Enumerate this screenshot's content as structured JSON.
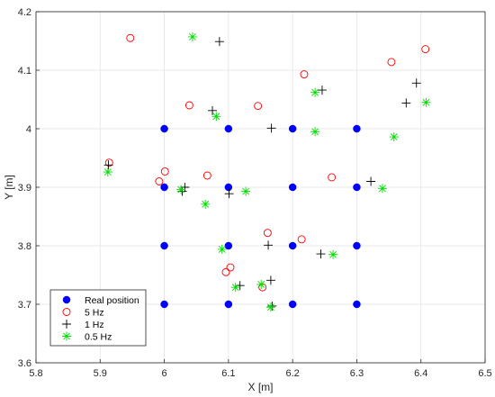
{
  "chart_data": {
    "type": "scatter",
    "title": "",
    "xlabel": "X [m]",
    "ylabel": "Y [m]",
    "xlim": [
      5.8,
      6.5
    ],
    "ylim": [
      3.6,
      4.2
    ],
    "xticks": [
      "5.8",
      "5.9",
      "6",
      "6.1",
      "6.2",
      "6.3",
      "6.4",
      "6.5"
    ],
    "yticks": [
      "3.6",
      "3.7",
      "3.8",
      "3.9",
      "4",
      "4.1",
      "4.2"
    ],
    "xtick_values": [
      5.8,
      5.9,
      6.0,
      6.1,
      6.2,
      6.3,
      6.4,
      6.5
    ],
    "ytick_values": [
      3.6,
      3.7,
      3.8,
      3.9,
      4.0,
      4.1,
      4.2
    ],
    "grid": true,
    "legend_position": "bottom-left",
    "series": [
      {
        "name": "Real position",
        "marker": "filled-circle",
        "color": "#0000ff",
        "points": [
          [
            6.0,
            4.0
          ],
          [
            6.1,
            4.0
          ],
          [
            6.2,
            4.0
          ],
          [
            6.3,
            4.0
          ],
          [
            6.0,
            3.9
          ],
          [
            6.1,
            3.9
          ],
          [
            6.2,
            3.9
          ],
          [
            6.3,
            3.9
          ],
          [
            6.0,
            3.8
          ],
          [
            6.1,
            3.8
          ],
          [
            6.2,
            3.8
          ],
          [
            6.3,
            3.8
          ],
          [
            6.0,
            3.7
          ],
          [
            6.1,
            3.7
          ],
          [
            6.2,
            3.7
          ],
          [
            6.3,
            3.7
          ]
        ]
      },
      {
        "name": "5 Hz",
        "marker": "open-circle",
        "color": "#ff0000",
        "points": [
          [
            5.947,
            4.155
          ],
          [
            6.407,
            4.136
          ],
          [
            6.354,
            4.114
          ],
          [
            6.218,
            4.093
          ],
          [
            6.039,
            4.04
          ],
          [
            6.146,
            4.039
          ],
          [
            5.914,
            3.942
          ],
          [
            6.001,
            3.927
          ],
          [
            5.992,
            3.91
          ],
          [
            6.067,
            3.92
          ],
          [
            6.261,
            3.917
          ],
          [
            6.161,
            3.822
          ],
          [
            6.214,
            3.811
          ],
          [
            6.103,
            3.763
          ],
          [
            6.096,
            3.755
          ],
          [
            6.153,
            3.729
          ]
        ]
      },
      {
        "name": "1 Hz",
        "marker": "plus",
        "color": "#000000",
        "points": [
          [
            6.086,
            4.149
          ],
          [
            6.393,
            4.078
          ],
          [
            6.246,
            4.066
          ],
          [
            6.377,
            4.044
          ],
          [
            6.075,
            4.031
          ],
          [
            6.167,
            4.001
          ],
          [
            5.913,
            3.938
          ],
          [
            6.322,
            3.91
          ],
          [
            6.032,
            3.9
          ],
          [
            6.028,
            3.893
          ],
          [
            6.101,
            3.889
          ],
          [
            6.162,
            3.801
          ],
          [
            6.244,
            3.786
          ],
          [
            6.166,
            3.741
          ],
          [
            6.118,
            3.732
          ],
          [
            6.168,
            3.697
          ]
        ]
      },
      {
        "name": "0.5 Hz",
        "marker": "asterisk",
        "color": "#00dd00",
        "points": [
          [
            6.044,
            4.157
          ],
          [
            6.408,
            4.045
          ],
          [
            6.235,
            4.062
          ],
          [
            6.081,
            4.021
          ],
          [
            6.235,
            3.995
          ],
          [
            6.358,
            3.986
          ],
          [
            5.912,
            3.926
          ],
          [
            6.026,
            3.896
          ],
          [
            6.127,
            3.893
          ],
          [
            6.34,
            3.898
          ],
          [
            6.064,
            3.871
          ],
          [
            6.09,
            3.794
          ],
          [
            6.263,
            3.785
          ],
          [
            6.111,
            3.729
          ],
          [
            6.151,
            3.734
          ],
          [
            6.166,
            3.695
          ]
        ]
      }
    ]
  },
  "legend": {
    "entries": [
      "Real position",
      "5 Hz",
      "1 Hz",
      "0.5 Hz"
    ]
  }
}
